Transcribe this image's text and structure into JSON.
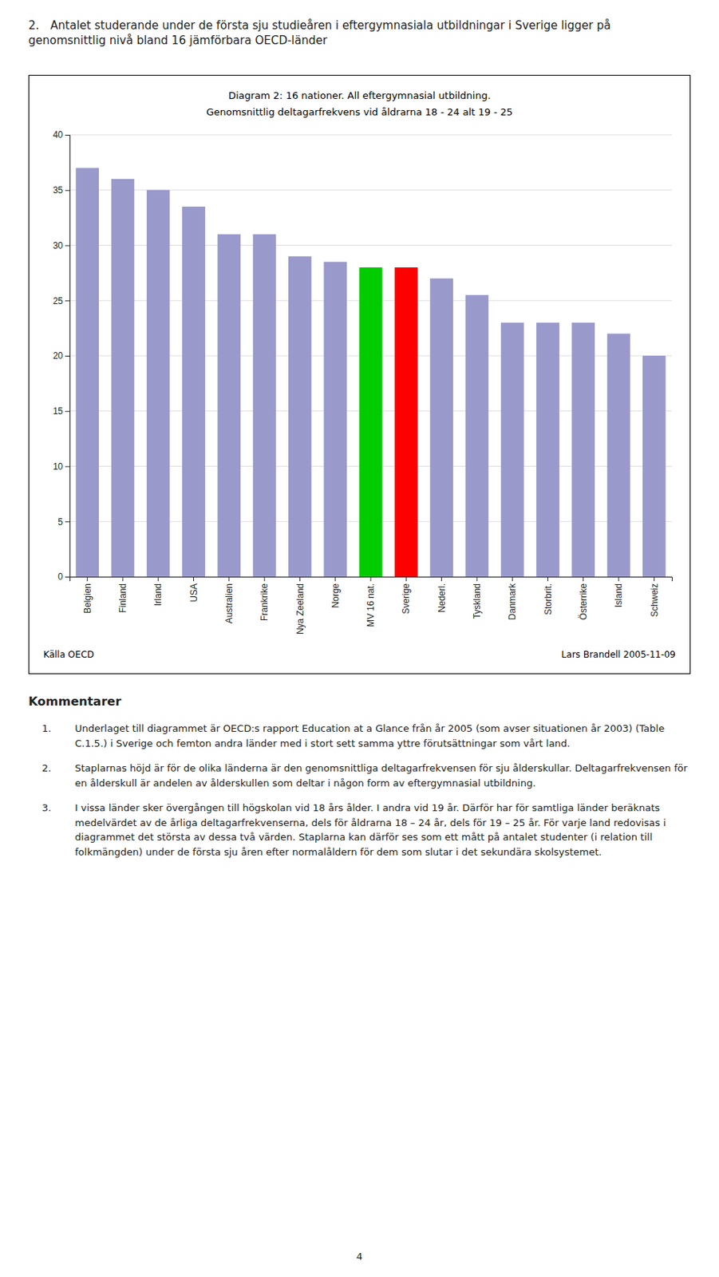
{
  "chart_data": {
    "type": "bar",
    "title": "Diagram 2: 16 nationer. All eftergymnasial utbildning.",
    "subtitle": "Genomsnittlig deltagarfrekvens vid åldrarna 18 - 24 alt 19 - 25",
    "categories": [
      "Belgien",
      "Finland",
      "Irland",
      "USA",
      "Australien",
      "Frankrike",
      "Nya Zeeland",
      "Norge",
      "MV 16 nat.",
      "Sverige",
      "Nederl.",
      "Tyskland",
      "Danmark",
      "Storbrit.",
      "Österrike",
      "Island",
      "Schweiz"
    ],
    "values": [
      37.0,
      36.0,
      35.0,
      33.5,
      31.0,
      31.0,
      29.0,
      28.5,
      28.0,
      28.0,
      27.0,
      25.5,
      23.0,
      23.0,
      23.0,
      22.0,
      20.0
    ],
    "colors": [
      "#9999cc",
      "#9999cc",
      "#9999cc",
      "#9999cc",
      "#9999cc",
      "#9999cc",
      "#9999cc",
      "#9999cc",
      "#00cc00",
      "#ff0000",
      "#9999cc",
      "#9999cc",
      "#9999cc",
      "#9999cc",
      "#9999cc",
      "#9999cc",
      "#9999cc"
    ],
    "ylim": [
      0,
      40
    ],
    "yticks": [
      0,
      5,
      10,
      15,
      20,
      25,
      30,
      35,
      40
    ],
    "grid": true
  },
  "heading": "2. Antalet studerande under de första sju studieåren i eftergymnasiala utbildningar i Sverige ligger på genomsnittlig nivå bland 16 jämförbara OECD-länder",
  "source": "Källa OECD",
  "author": "Lars Brandell 2005-11-09",
  "comments": {
    "heading": "Kommentarer",
    "items": [
      {
        "number": "1.",
        "text": "Underlaget till diagrammet är OECD:s rapport Education at a Glance från år 2005 (som avser situationen år 2003) (Table C.1.5.) i Sverige och femton andra länder med i stort sett samma yttre förutsättningar som vårt land."
      },
      {
        "number": "2.",
        "text": "Staplarnas höjd är för de olika länderna är den genomsnittliga deltagarfrekvensen för sju ålderskullar. Deltagarfrekvensen för en ålderskull är andelen av ålderskullen som deltar i någon form av eftergymnasial utbildning."
      },
      {
        "number": "3.",
        "text": "I vissa länder sker övergången till högskolan vid 18 års ålder. I andra vid 19 år. Därför har för samtliga länder beräknats medelvärdet av de årliga deltagarfrekvenserna, dels för åldrarna 18 – 24 år, dels för 19 – 25 år. För varje land redovisas i diagrammet det största av dessa två värden. Staplarna kan därför ses som ett mått på antalet studenter (i relation till folkmängden) under de första sju åren efter normalåldern för dem som slutar i det sekundära skolsystemet."
      }
    ]
  },
  "page_number": "4"
}
